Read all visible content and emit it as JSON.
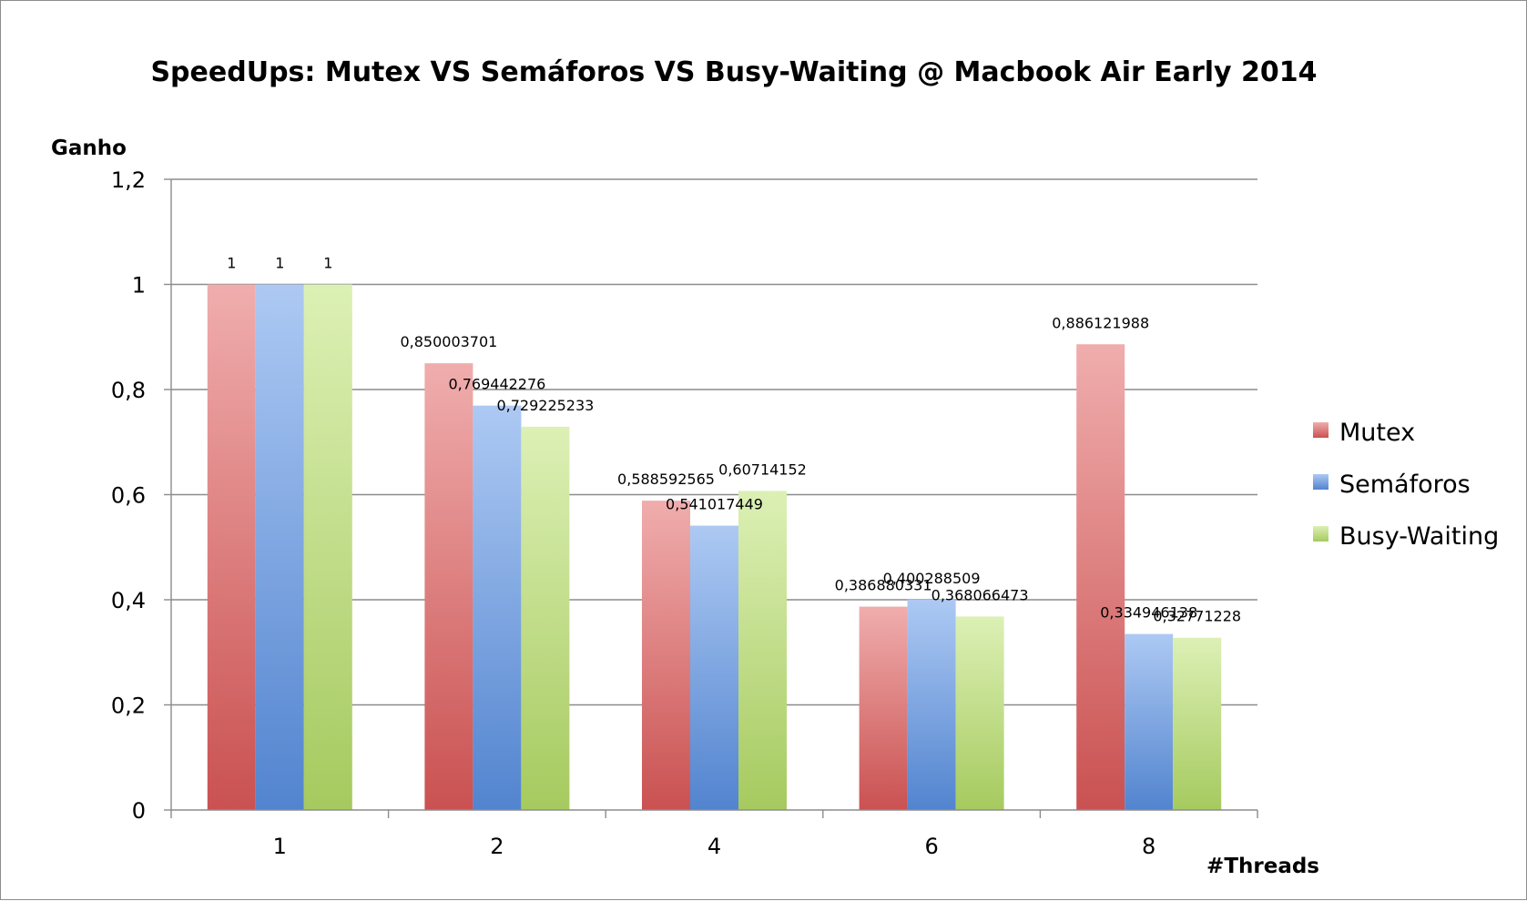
{
  "chart_data": {
    "type": "bar",
    "title": "SpeedUps: Mutex VS Semáforos VS Busy-Waiting @ Macbook Air Early 2014",
    "xlabel": "#Threads",
    "ylabel": "Ganho",
    "categories": [
      "1",
      "2",
      "4",
      "6",
      "8"
    ],
    "ylim": [
      0,
      1.2
    ],
    "yticks": [
      {
        "value": 0,
        "label": "0"
      },
      {
        "value": 0.2,
        "label": "0,2"
      },
      {
        "value": 0.4,
        "label": "0,4"
      },
      {
        "value": 0.6,
        "label": "0,6"
      },
      {
        "value": 0.8,
        "label": "0,8"
      },
      {
        "value": 1,
        "label": "1"
      },
      {
        "value": 1.2,
        "label": "1,2"
      }
    ],
    "grid": true,
    "legend_position": "right",
    "series": [
      {
        "name": "Mutex",
        "color": "#e05a5a",
        "values": [
          1,
          0.850003701,
          0.588592565,
          0.386880331,
          0.886121988
        ],
        "labels": [
          "1",
          "0,850003701",
          "0,588592565",
          "0,386880331",
          "0,886121988"
        ]
      },
      {
        "name": "Semáforos",
        "color": "#5b93e6",
        "values": [
          1,
          0.769442276,
          0.541017449,
          0.400288509,
          0.334946138
        ],
        "labels": [
          "1",
          "0,769442276",
          "0,541017449",
          "0,400288509",
          "0,334946138"
        ]
      },
      {
        "name": "Busy-Waiting",
        "color": "#b8e06a",
        "values": [
          1,
          0.729225233,
          0.60714152,
          0.368066473,
          0.32771228
        ],
        "labels": [
          "1",
          "0,729225233",
          "0,60714152",
          "0,368066473",
          "0,32771228"
        ]
      }
    ]
  }
}
